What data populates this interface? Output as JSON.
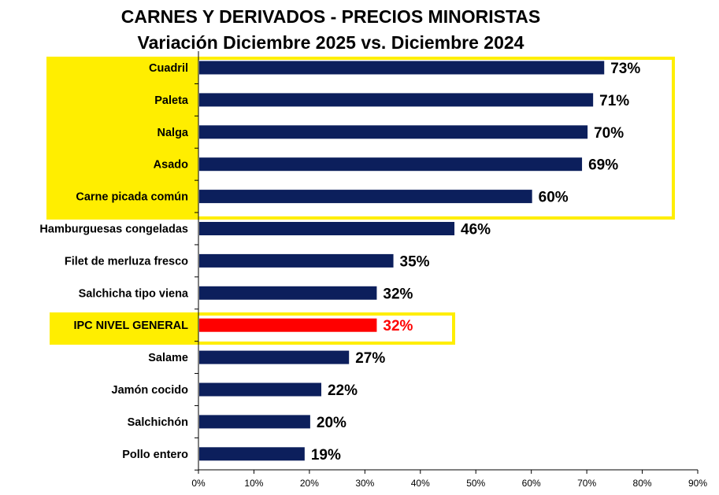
{
  "chart_data": {
    "type": "bar",
    "orientation": "horizontal",
    "title": "CARNES Y DERIVADOS - PRECIOS MINORISTAS",
    "subtitle": "Variación Diciembre 2025 vs. Diciembre 2024",
    "categories": [
      "Cuadril",
      "Paleta",
      "Nalga",
      "Asado",
      "Carne picada común",
      "Hamburguesas congeladas",
      "Filet de merluza fresco",
      "Salchicha tipo viena",
      "IPC NIVEL GENERAL",
      "Salame",
      "Jamón cocido",
      "Salchichón",
      "Pollo entero"
    ],
    "values": [
      73,
      71,
      70,
      69,
      60,
      46,
      35,
      32,
      32,
      27,
      22,
      20,
      19
    ],
    "value_labels": [
      "73%",
      "71%",
      "70%",
      "69%",
      "60%",
      "46%",
      "35%",
      "32%",
      "32%",
      "27%",
      "22%",
      "20%",
      "19%"
    ],
    "highlight_index": 8,
    "x_ticks": [
      "0%",
      "10%",
      "20%",
      "30%",
      "40%",
      "50%",
      "60%",
      "70%",
      "80%",
      "90%"
    ],
    "xlim": [
      0,
      90
    ],
    "colors": {
      "bar": "#0c1f5c",
      "highlight_bar": "#ff0000",
      "highlight_text": "#ff0000",
      "box": "#ffee00"
    }
  }
}
